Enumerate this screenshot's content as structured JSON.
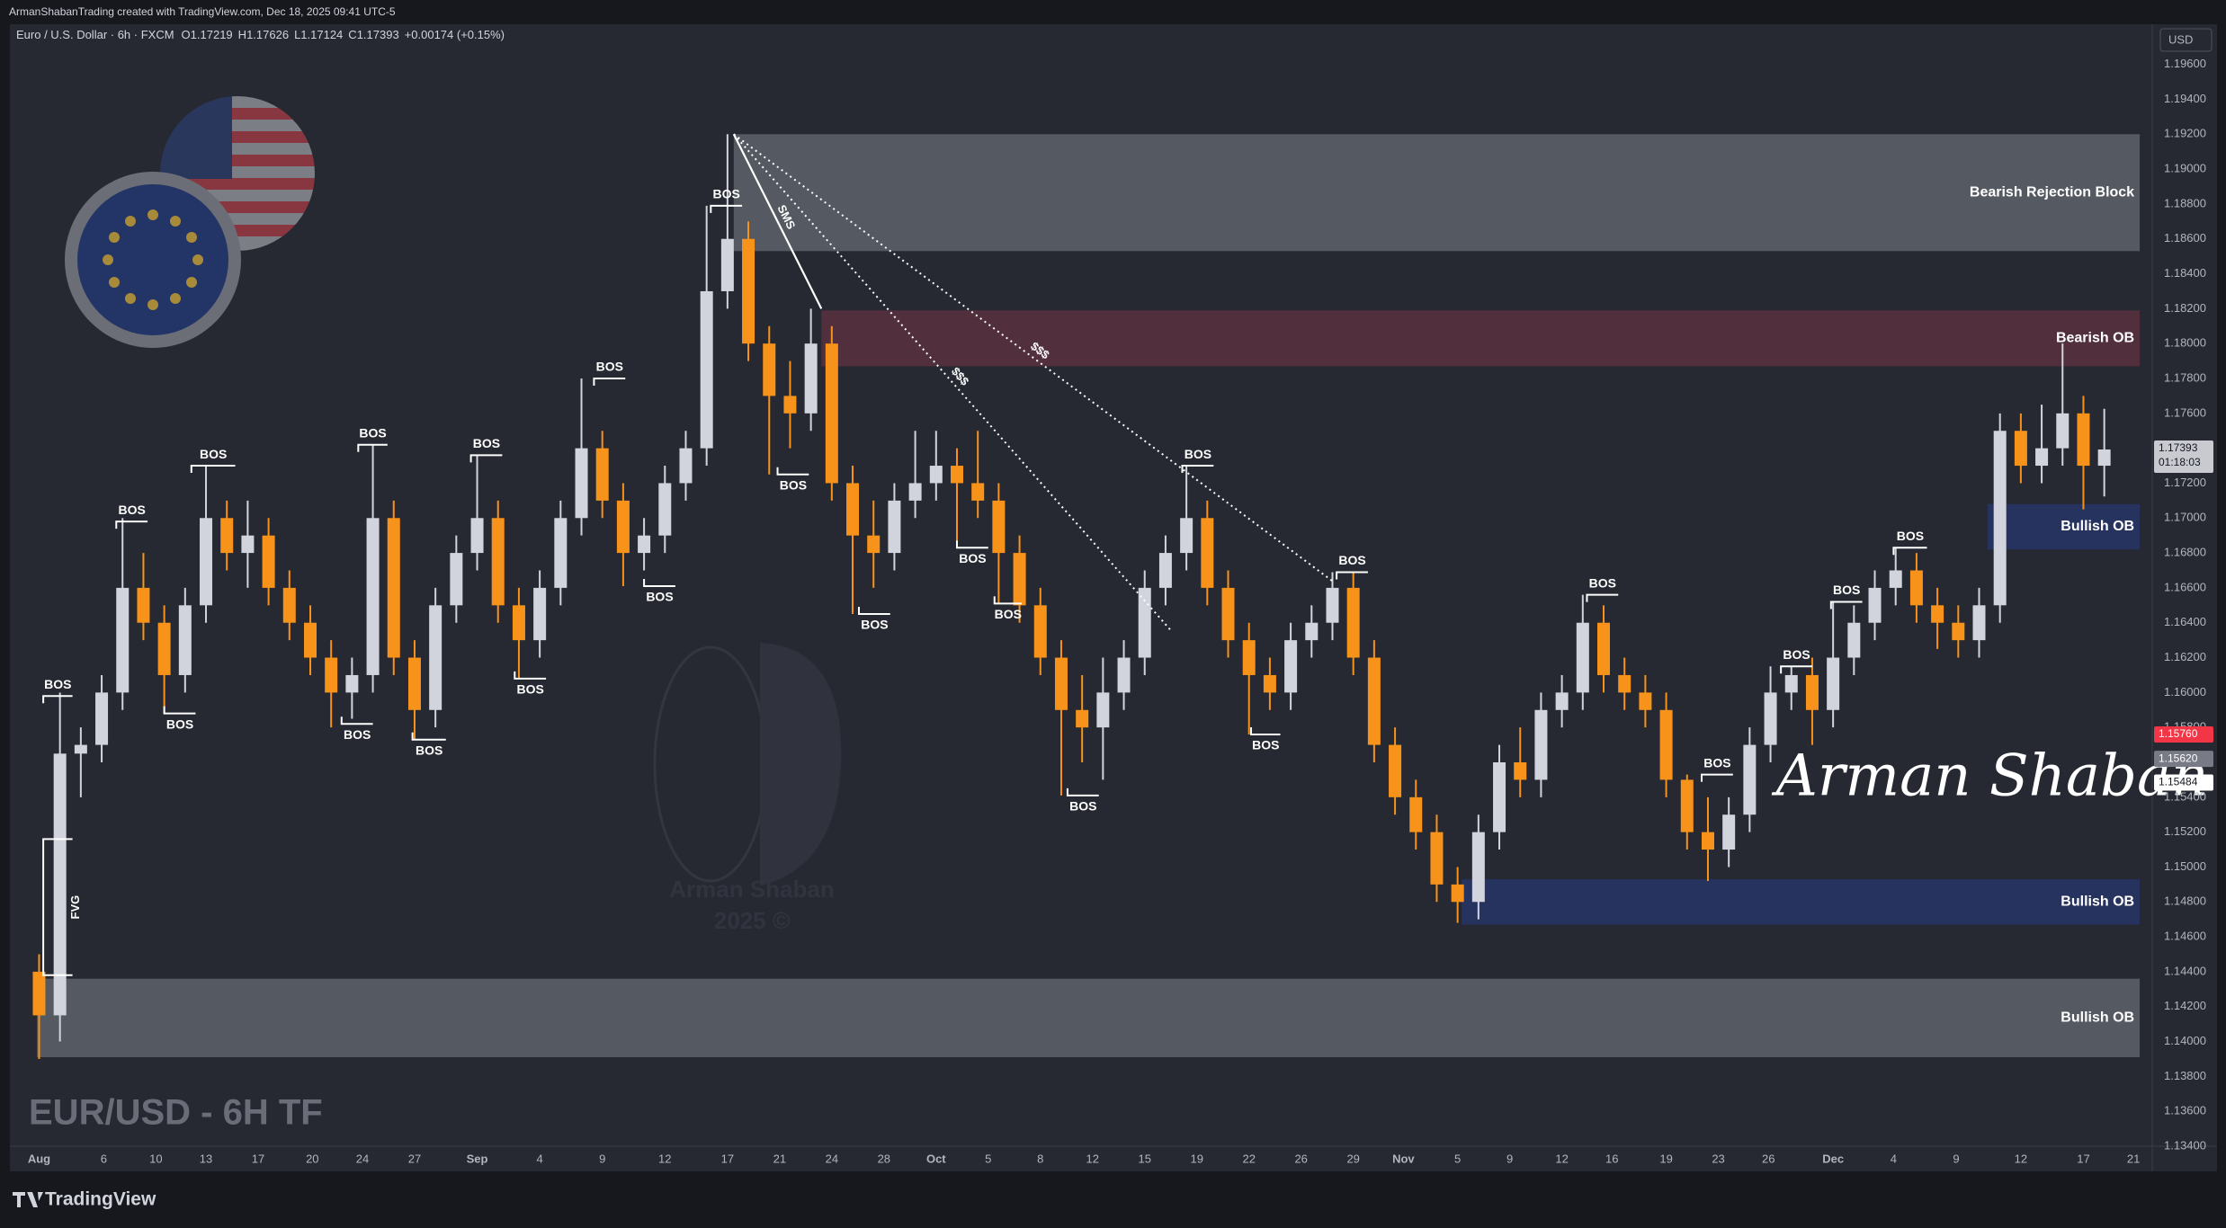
{
  "page": {
    "credit": "ArmanShabanTrading created with TradingView.com, Dec 18, 2025 09:41 UTC-5",
    "brand": "TradingView",
    "watermark": "EUR/USD - 6H TF",
    "signature": "Arman Shaban",
    "logo_text": "Arman Shaban",
    "logo_year": "2025 ©"
  },
  "chart_data": {
    "type": "candlestick",
    "title": "Euro / U.S. Dollar · 6h · FXCM",
    "legend_ohlc": [
      {
        "key": "O",
        "value": 1.17219
      },
      {
        "key": "H",
        "value": 1.17626
      },
      {
        "key": "L",
        "value": 1.17124
      },
      {
        "key": "C",
        "value": 1.17393
      }
    ],
    "change": "+0.00174 (+0.15%)",
    "currency": "USD",
    "up_color": "#d1d4dc",
    "down_color": "#f7931a",
    "open": [
      1.144,
      1.1415,
      1.1565,
      1.157,
      1.16,
      1.166,
      1.164,
      1.161,
      1.165,
      1.17,
      1.168,
      1.169,
      1.166,
      1.164,
      1.162,
      1.16,
      1.161,
      1.17,
      1.162,
      1.159,
      1.165,
      1.168,
      1.17,
      1.165,
      1.163,
      1.166,
      1.17,
      1.174,
      1.171,
      1.168,
      1.169,
      1.172,
      1.174,
      1.183,
      1.186,
      1.18,
      1.177,
      1.176,
      1.18,
      1.172,
      1.169,
      1.168,
      1.171,
      1.172,
      1.173,
      1.172,
      1.171,
      1.168,
      1.165,
      1.162,
      1.159,
      1.158,
      1.16,
      1.162,
      1.166,
      1.168,
      1.17,
      1.166,
      1.163,
      1.161,
      1.16,
      1.163,
      1.164,
      1.166,
      1.162,
      1.157,
      1.154,
      1.152,
      1.149,
      1.148,
      1.152,
      1.156,
      1.155,
      1.159,
      1.16,
      1.164,
      1.161,
      1.16,
      1.159,
      1.155,
      1.152,
      1.151,
      1.153,
      1.157,
      1.16,
      1.161,
      1.159,
      1.162,
      1.164,
      1.166,
      1.167,
      1.165,
      1.164,
      1.163,
      1.165,
      1.175,
      1.173,
      1.174,
      1.176,
      1.173
    ],
    "high": [
      1.145,
      1.16,
      1.158,
      1.161,
      1.17,
      1.168,
      1.165,
      1.166,
      1.173,
      1.171,
      1.171,
      1.17,
      1.167,
      1.165,
      1.163,
      1.162,
      1.1742,
      1.171,
      1.163,
      1.166,
      1.169,
      1.1736,
      1.171,
      1.166,
      1.167,
      1.171,
      1.178,
      1.175,
      1.172,
      1.17,
      1.173,
      1.175,
      1.1879,
      1.192,
      1.187,
      1.181,
      1.179,
      1.182,
      1.181,
      1.173,
      1.171,
      1.172,
      1.175,
      1.175,
      1.174,
      1.175,
      1.172,
      1.169,
      1.166,
      1.163,
      1.161,
      1.162,
      1.163,
      1.167,
      1.169,
      1.173,
      1.171,
      1.167,
      1.164,
      1.162,
      1.164,
      1.165,
      1.1669,
      1.1669,
      1.163,
      1.158,
      1.155,
      1.153,
      1.15,
      1.153,
      1.157,
      1.158,
      1.16,
      1.161,
      1.1656,
      1.165,
      1.162,
      1.161,
      1.16,
      1.1553,
      1.154,
      1.154,
      1.158,
      1.1615,
      1.1615,
      1.162,
      1.1652,
      1.165,
      1.167,
      1.1683,
      1.168,
      1.166,
      1.165,
      1.166,
      1.176,
      1.176,
      1.1765,
      1.18,
      1.177,
      1.17626
    ],
    "low": [
      1.139,
      1.14,
      1.154,
      1.156,
      1.159,
      1.163,
      1.1588,
      1.16,
      1.164,
      1.167,
      1.166,
      1.165,
      1.163,
      1.161,
      1.158,
      1.1585,
      1.16,
      1.161,
      1.1573,
      1.158,
      1.164,
      1.167,
      1.164,
      1.1608,
      1.162,
      1.165,
      1.169,
      1.17,
      1.1661,
      1.167,
      1.168,
      1.171,
      1.173,
      1.182,
      1.179,
      1.1725,
      1.174,
      1.175,
      1.171,
      1.1645,
      1.166,
      1.167,
      1.17,
      1.171,
      1.1683,
      1.17,
      1.1651,
      1.164,
      1.161,
      1.1541,
      1.156,
      1.155,
      1.159,
      1.161,
      1.165,
      1.167,
      1.165,
      1.162,
      1.1576,
      1.159,
      1.159,
      1.162,
      1.163,
      1.161,
      1.156,
      1.153,
      1.151,
      1.148,
      1.1468,
      1.147,
      1.151,
      1.154,
      1.154,
      1.158,
      1.159,
      1.16,
      1.159,
      1.158,
      1.154,
      1.151,
      1.1492,
      1.15,
      1.152,
      1.156,
      1.159,
      1.157,
      1.158,
      1.161,
      1.163,
      1.165,
      1.164,
      1.1625,
      1.162,
      1.162,
      1.164,
      1.172,
      1.172,
      1.173,
      1.1705,
      1.17124
    ],
    "close": [
      1.1415,
      1.1565,
      1.157,
      1.16,
      1.166,
      1.164,
      1.161,
      1.165,
      1.17,
      1.168,
      1.169,
      1.166,
      1.164,
      1.162,
      1.16,
      1.161,
      1.17,
      1.162,
      1.159,
      1.165,
      1.168,
      1.17,
      1.165,
      1.163,
      1.166,
      1.17,
      1.174,
      1.171,
      1.168,
      1.169,
      1.172,
      1.174,
      1.183,
      1.186,
      1.18,
      1.177,
      1.176,
      1.18,
      1.172,
      1.169,
      1.168,
      1.171,
      1.172,
      1.173,
      1.172,
      1.171,
      1.168,
      1.165,
      1.162,
      1.159,
      1.158,
      1.16,
      1.162,
      1.166,
      1.168,
      1.17,
      1.166,
      1.163,
      1.161,
      1.16,
      1.163,
      1.164,
      1.166,
      1.162,
      1.157,
      1.154,
      1.152,
      1.149,
      1.148,
      1.152,
      1.156,
      1.155,
      1.159,
      1.16,
      1.164,
      1.161,
      1.16,
      1.159,
      1.155,
      1.152,
      1.151,
      1.153,
      1.157,
      1.16,
      1.161,
      1.159,
      1.162,
      1.164,
      1.166,
      1.167,
      1.165,
      1.164,
      1.163,
      1.165,
      1.175,
      1.173,
      1.174,
      1.176,
      1.173,
      1.17393
    ],
    "xlim": [
      -1.4,
      101.3
    ],
    "xticks": [
      {
        "value": 0,
        "label": "Aug"
      },
      {
        "value": 3.1,
        "label": "6"
      },
      {
        "value": 5.6,
        "label": "10"
      },
      {
        "value": 8.0,
        "label": "13"
      },
      {
        "value": 10.5,
        "label": "17"
      },
      {
        "value": 13.1,
        "label": "20"
      },
      {
        "value": 15.5,
        "label": "24"
      },
      {
        "value": 18.0,
        "label": "27"
      },
      {
        "value": 21.0,
        "label": "Sep"
      },
      {
        "value": 24.0,
        "label": "4"
      },
      {
        "value": 27.0,
        "label": "9"
      },
      {
        "value": 30.0,
        "label": "12"
      },
      {
        "value": 33.0,
        "label": "17"
      },
      {
        "value": 35.5,
        "label": "21"
      },
      {
        "value": 38.0,
        "label": "24"
      },
      {
        "value": 40.5,
        "label": "28"
      },
      {
        "value": 43.0,
        "label": "Oct"
      },
      {
        "value": 45.5,
        "label": "5"
      },
      {
        "value": 48.0,
        "label": "8"
      },
      {
        "value": 50.5,
        "label": "12"
      },
      {
        "value": 53.0,
        "label": "15"
      },
      {
        "value": 55.5,
        "label": "19"
      },
      {
        "value": 58.0,
        "label": "22"
      },
      {
        "value": 60.5,
        "label": "26"
      },
      {
        "value": 63.0,
        "label": "29"
      },
      {
        "value": 65.4,
        "label": "Nov"
      },
      {
        "value": 68.0,
        "label": "5"
      },
      {
        "value": 70.5,
        "label": "9"
      },
      {
        "value": 73.0,
        "label": "12"
      },
      {
        "value": 75.4,
        "label": "16"
      },
      {
        "value": 78.0,
        "label": "19"
      },
      {
        "value": 80.5,
        "label": "23"
      },
      {
        "value": 82.9,
        "label": "26"
      },
      {
        "value": 86.0,
        "label": "Dec"
      },
      {
        "value": 88.9,
        "label": "4"
      },
      {
        "value": 91.9,
        "label": "9"
      },
      {
        "value": 95.0,
        "label": "12"
      },
      {
        "value": 98.0,
        "label": "17"
      },
      {
        "value": 100.4,
        "label": "21"
      }
    ],
    "ylim": [
      1.134,
      1.1983
    ],
    "yticks": [
      {
        "value": 1.134,
        "label": "1.13400"
      },
      {
        "value": 1.136,
        "label": "1.13600"
      },
      {
        "value": 1.138,
        "label": "1.13800"
      },
      {
        "value": 1.14,
        "label": "1.14000"
      },
      {
        "value": 1.142,
        "label": "1.14200"
      },
      {
        "value": 1.144,
        "label": "1.14400"
      },
      {
        "value": 1.146,
        "label": "1.14600"
      },
      {
        "value": 1.148,
        "label": "1.14800"
      },
      {
        "value": 1.15,
        "label": "1.15000"
      },
      {
        "value": 1.152,
        "label": "1.15200"
      },
      {
        "value": 1.154,
        "label": "1.15400"
      },
      {
        "value": 1.156,
        "label": "1.15600"
      },
      {
        "value": 1.158,
        "label": "1.15800"
      },
      {
        "value": 1.16,
        "label": "1.16000"
      },
      {
        "value": 1.162,
        "label": "1.16200"
      },
      {
        "value": 1.164,
        "label": "1.16400"
      },
      {
        "value": 1.166,
        "label": "1.16600"
      },
      {
        "value": 1.168,
        "label": "1.16800"
      },
      {
        "value": 1.17,
        "label": "1.17000"
      },
      {
        "value": 1.172,
        "label": "1.17200"
      },
      {
        "value": 1.174,
        "label": "1.17400"
      },
      {
        "value": 1.176,
        "label": "1.17600"
      },
      {
        "value": 1.178,
        "label": "1.17800"
      },
      {
        "value": 1.18,
        "label": "1.18000"
      },
      {
        "value": 1.182,
        "label": "1.18200"
      },
      {
        "value": 1.184,
        "label": "1.18400"
      },
      {
        "value": 1.186,
        "label": "1.18600"
      },
      {
        "value": 1.188,
        "label": "1.18800"
      },
      {
        "value": 1.19,
        "label": "1.19000"
      },
      {
        "value": 1.192,
        "label": "1.19200"
      },
      {
        "value": 1.194,
        "label": "1.19400"
      },
      {
        "value": 1.196,
        "label": "1.19600"
      }
    ],
    "grid": false,
    "zones": [
      {
        "label": "Bearish Rejection Block",
        "from": 33.3,
        "to": 100.7,
        "top": 1.192,
        "bottom": 1.1853,
        "color": "#5b5e66"
      },
      {
        "label": "Bearish OB",
        "from": 37.5,
        "to": 100.7,
        "top": 1.1819,
        "bottom": 1.1787,
        "color": "#56303d"
      },
      {
        "label": "Bullish OB",
        "from": 93.4,
        "to": 100.7,
        "top": 1.1708,
        "bottom": 1.1682,
        "color": "#273463"
      },
      {
        "label": "Bullish OB",
        "from": 68.2,
        "to": 100.7,
        "top": 1.1493,
        "bottom": 1.1467,
        "color": "#273463"
      },
      {
        "label": "Bullish OB",
        "from": -0.1,
        "to": 100.7,
        "top": 1.1436,
        "bottom": 1.1391,
        "color": "#5b5e66"
      }
    ],
    "bos": [
      {
        "label": "BOS",
        "x": [
          0.2,
          1.6
        ],
        "price": 1.1598,
        "side": "above"
      },
      {
        "label": "BOS",
        "x": [
          3.7,
          5.2
        ],
        "price": 1.1698,
        "side": "above"
      },
      {
        "label": "BOS",
        "x": [
          6.0,
          7.5
        ],
        "price": 1.1588,
        "side": "below"
      },
      {
        "label": "BOS",
        "x": [
          7.3,
          9.4
        ],
        "price": 1.173,
        "side": "above"
      },
      {
        "label": "BOS",
        "x": [
          14.5,
          16.0
        ],
        "price": 1.1582,
        "side": "below"
      },
      {
        "label": "BOS",
        "x": [
          15.3,
          16.7
        ],
        "price": 1.1742,
        "side": "above"
      },
      {
        "label": "BOS",
        "x": [
          17.9,
          19.5
        ],
        "price": 1.1573,
        "side": "below"
      },
      {
        "label": "BOS",
        "x": [
          20.7,
          22.2
        ],
        "price": 1.1736,
        "side": "above"
      },
      {
        "label": "BOS",
        "x": [
          22.8,
          24.3
        ],
        "price": 1.1608,
        "side": "below"
      },
      {
        "label": "BOS",
        "x": [
          26.6,
          28.1
        ],
        "price": 1.178,
        "side": "above"
      },
      {
        "label": "BOS",
        "x": [
          29.0,
          30.5
        ],
        "price": 1.1661,
        "side": "below"
      },
      {
        "label": "BOS",
        "x": [
          32.2,
          33.7
        ],
        "price": 1.1879,
        "side": "above"
      },
      {
        "label": "BOS",
        "x": [
          35.4,
          36.9
        ],
        "price": 1.1725,
        "side": "below"
      },
      {
        "label": "BOS",
        "x": [
          39.3,
          40.8
        ],
        "price": 1.1645,
        "side": "below"
      },
      {
        "label": "BOS",
        "x": [
          44.0,
          45.5
        ],
        "price": 1.1683,
        "side": "below"
      },
      {
        "label": "BOS",
        "x": [
          45.8,
          47.1
        ],
        "price": 1.1651,
        "side": "below"
      },
      {
        "label": "BOS",
        "x": [
          49.3,
          50.8
        ],
        "price": 1.1541,
        "side": "below"
      },
      {
        "label": "BOS",
        "x": [
          54.8,
          56.3
        ],
        "price": 1.173,
        "side": "above"
      },
      {
        "label": "BOS",
        "x": [
          58.1,
          59.5
        ],
        "price": 1.1576,
        "side": "below"
      },
      {
        "label": "BOS",
        "x": [
          62.2,
          63.7
        ],
        "price": 1.1669,
        "side": "above"
      },
      {
        "label": "BOS",
        "x": [
          74.2,
          75.7
        ],
        "price": 1.1656,
        "side": "above"
      },
      {
        "label": "BOS",
        "x": [
          79.7,
          81.2
        ],
        "price": 1.1553,
        "side": "above"
      },
      {
        "label": "BOS",
        "x": [
          83.5,
          85.0
        ],
        "price": 1.1615,
        "side": "above"
      },
      {
        "label": "BOS",
        "x": [
          85.9,
          87.4
        ],
        "price": 1.1652,
        "side": "above"
      },
      {
        "label": "BOS",
        "x": [
          88.9,
          90.5
        ],
        "price": 1.1683,
        "side": "above"
      }
    ],
    "lines": [
      {
        "label": "SMS",
        "x": [
          33.3,
          37.5
        ],
        "y": [
          1.192,
          1.182
        ],
        "style": "solid"
      },
      {
        "label": "$$$",
        "x": [
          33.3,
          54.3
        ],
        "y": [
          1.192,
          1.1635
        ],
        "style": "dotted"
      },
      {
        "label": "$$$",
        "x": [
          33.3,
          62.1
        ],
        "y": [
          1.192,
          1.1663
        ],
        "style": "dotted"
      }
    ],
    "fvg": {
      "label": "FVG",
      "x": [
        0.2,
        1.6
      ],
      "top": 1.1516,
      "bottom": 1.1438
    },
    "price_markers": [
      {
        "value": 1.1576,
        "label": "1.15760",
        "color": "#f23645"
      },
      {
        "value": 1.1562,
        "label": "1.15620",
        "color": "#787b86"
      },
      {
        "value": 1.15484,
        "label": "1.15484",
        "color": "#ffffff"
      }
    ],
    "last_price": {
      "value": 1.17393,
      "label": "1.17393",
      "color": "#c8cad0"
    },
    "countdown": "01:18:03"
  }
}
